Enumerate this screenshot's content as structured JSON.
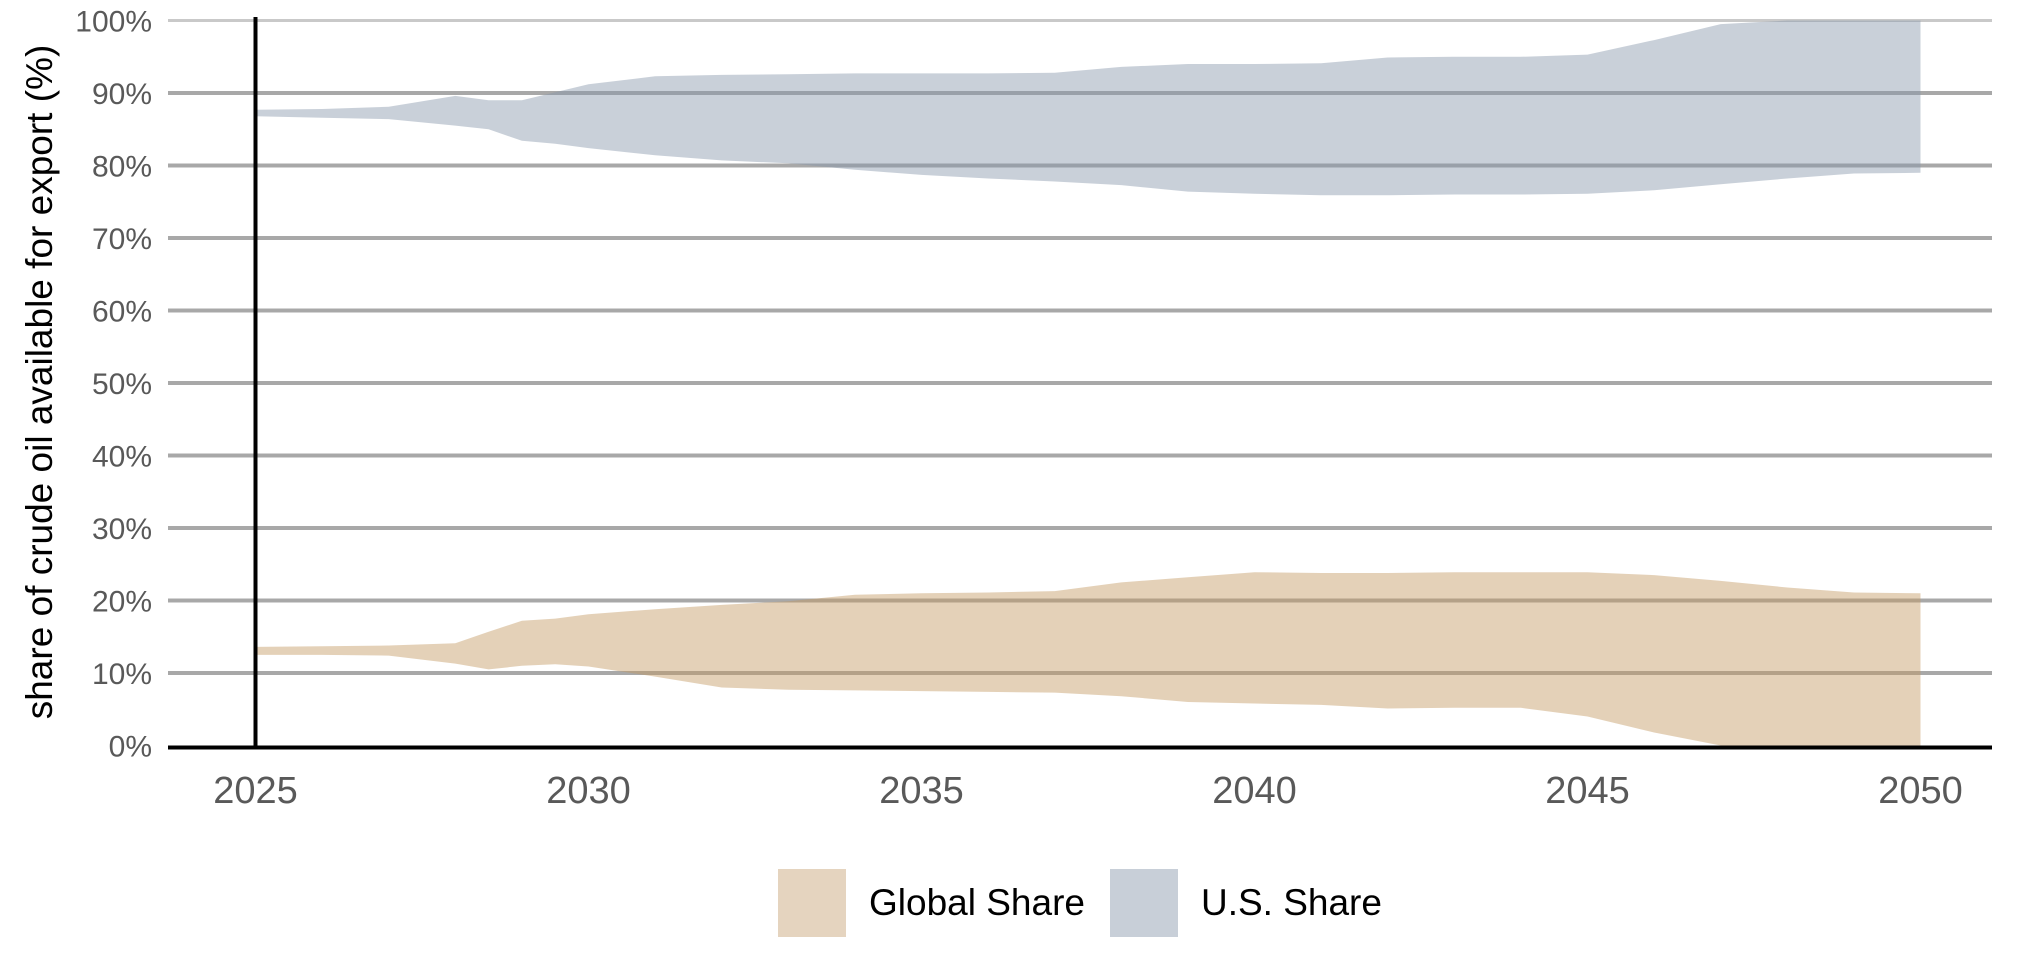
{
  "colors": {
    "background": "#ffffff",
    "grid": "#a8a8a8",
    "grid_top": "#c9c9c9",
    "axis": "#000000",
    "event_line": "#000000",
    "tick_label": "#595959",
    "global_fill": "rgba(196,152,98,0.45)",
    "us_fill": "rgba(135,150,170,0.45)",
    "global_swatch": "#e5d4bf",
    "us_swatch": "#c8cfd8"
  },
  "legend": {
    "items": [
      {
        "label": "Global Share",
        "color": "#e5d4bf"
      },
      {
        "label": "U.S. Share",
        "color": "#c8cfd8"
      }
    ]
  },
  "chart_data": {
    "type": "area",
    "subtype": "range-band",
    "title": "",
    "xlabel": "",
    "ylabel": "share of crude oil available for export (%)",
    "grid": true,
    "legend_position": "bottom",
    "xlim": [
      2025,
      2050
    ],
    "ylim": [
      0,
      100
    ],
    "event_line_x": 2025,
    "x_ticks": [
      2025,
      2030,
      2035,
      2040,
      2045,
      2050
    ],
    "y_tick_values": [
      0,
      10,
      20,
      30,
      40,
      50,
      60,
      70,
      80,
      90,
      100
    ],
    "y_tick_labels": [
      "0%",
      "10%",
      "20%",
      "30%",
      "40%",
      "50%",
      "60%",
      "70%",
      "80%",
      "90%",
      "100%"
    ],
    "x": [
      2025,
      2026,
      2027,
      2028,
      2028.5,
      2029,
      2029.5,
      2030,
      2031,
      2032,
      2033,
      2034,
      2035,
      2036,
      2037,
      2038,
      2039,
      2040,
      2041,
      2042,
      2043,
      2044,
      2045,
      2046,
      2047,
      2048,
      2049,
      2050
    ],
    "series": [
      {
        "name": "Global Share",
        "fill": "rgba(196,152,98,0.45)",
        "lower": [
          12.5,
          12.5,
          12.4,
          11.3,
          10.5,
          11.0,
          11.2,
          10.9,
          9.5,
          8.0,
          7.7,
          7.6,
          7.5,
          7.4,
          7.3,
          6.8,
          6.0,
          5.8,
          5.6,
          5.1,
          5.2,
          5.2,
          4.0,
          1.8,
          0,
          0,
          0,
          0
        ],
        "upper": [
          13.6,
          13.7,
          13.8,
          14.1,
          15.7,
          17.2,
          17.5,
          18.1,
          18.8,
          19.4,
          19.9,
          20.8,
          21.0,
          21.1,
          21.3,
          22.5,
          23.2,
          23.9,
          23.8,
          23.8,
          23.9,
          23.9,
          23.9,
          23.5,
          22.7,
          21.8,
          21.1,
          21.0
        ]
      },
      {
        "name": "U.S. Share",
        "fill": "rgba(135,150,170,0.45)",
        "lower": [
          86.8,
          86.6,
          86.4,
          85.5,
          85.0,
          83.4,
          83.0,
          82.4,
          81.4,
          80.7,
          80.3,
          79.4,
          78.7,
          78.2,
          77.8,
          77.3,
          76.4,
          76.1,
          75.9,
          75.9,
          76.0,
          76.0,
          76.1,
          76.6,
          77.4,
          78.2,
          78.9,
          79.0
        ],
        "upper": [
          87.7,
          87.8,
          88.1,
          89.6,
          89.0,
          89.0,
          90.1,
          91.2,
          92.3,
          92.5,
          92.6,
          92.7,
          92.7,
          92.7,
          92.8,
          93.6,
          94.0,
          94.0,
          94.1,
          94.9,
          95.0,
          95.0,
          95.3,
          97.3,
          99.5,
          100,
          100,
          100
        ]
      }
    ]
  }
}
